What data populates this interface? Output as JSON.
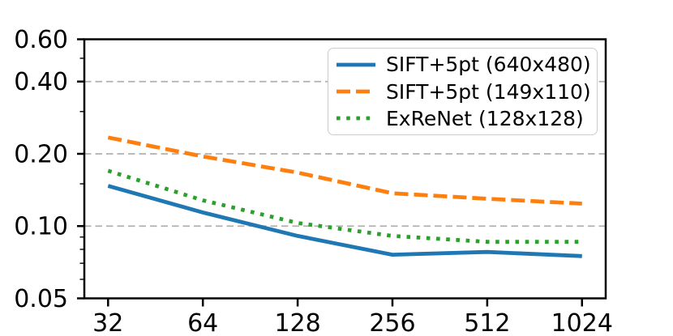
{
  "chart_data": {
    "type": "line",
    "title": "",
    "xlabel": "",
    "ylabel": "",
    "xscale": "log2",
    "yscale": "log10",
    "xlim": [
      26.9,
      1217.7
    ],
    "ylim": [
      0.05,
      0.6
    ],
    "x": [
      32,
      64,
      128,
      256,
      512,
      1024
    ],
    "x_tick_labels": [
      "32",
      "64",
      "128",
      "256",
      "512",
      "1024"
    ],
    "y_ticks": [
      {
        "value": 0.6,
        "label": "0.60"
      },
      {
        "value": 0.4,
        "label": "0.40"
      },
      {
        "value": 0.2,
        "label": "0.20"
      },
      {
        "value": 0.1,
        "label": "0.10"
      },
      {
        "value": 0.05,
        "label": "0.05"
      }
    ],
    "y_minor_ticks": [
      0.5,
      0.3,
      0.15,
      0.09,
      0.08,
      0.07,
      0.06
    ],
    "y_gridlines": [
      0.4,
      0.2,
      0.1
    ],
    "grid_on": true,
    "grid_color": "#b0b0b0",
    "axis_color": "#000000",
    "legend_position": "upper right",
    "series": [
      {
        "name": "SIFT+5pt (640x480)",
        "color": "#1f77b4",
        "style": "solid",
        "values": [
          0.147,
          0.114,
          0.091,
          0.076,
          0.078,
          0.075
        ]
      },
      {
        "name": "SIFT+5pt (149x110)",
        "color": "#ff7f0e",
        "style": "dashed",
        "values": [
          0.234,
          0.195,
          0.167,
          0.137,
          0.13,
          0.124
        ]
      },
      {
        "name": "ExReNet (128x128)",
        "color": "#2ca02c",
        "style": "dotted",
        "values": [
          0.17,
          0.128,
          0.103,
          0.091,
          0.086,
          0.086
        ]
      }
    ]
  }
}
